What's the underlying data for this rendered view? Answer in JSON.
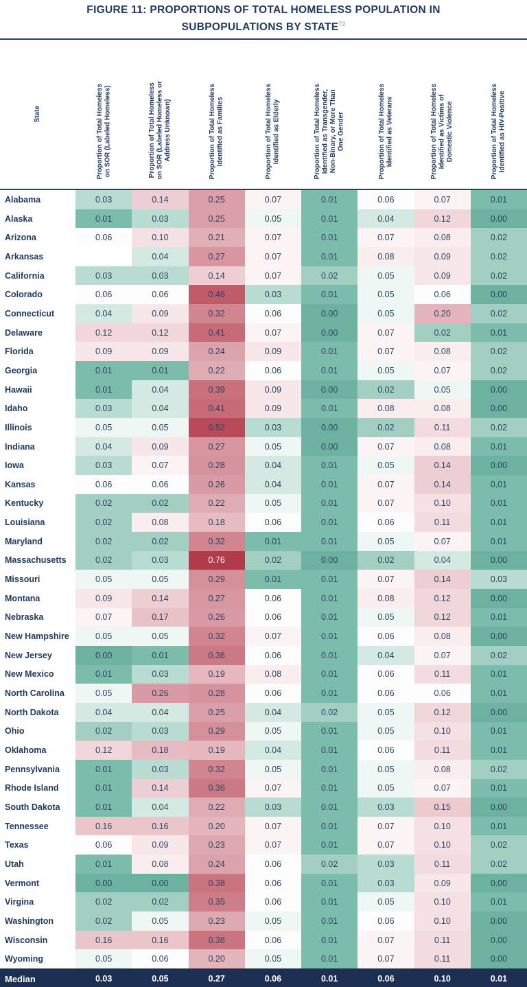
{
  "header": {
    "title_line1": "FIGURE 11: PROPORTIONS OF TOTAL HOMELESS POPULATION IN",
    "title_line2": "SUBPOPULATIONS BY STATE",
    "footnote": "72"
  },
  "colors": {
    "title_navy": "#203a60",
    "value_text": "#2c4364",
    "divider": "#2a3f63",
    "median_bg": "#1c2f52",
    "median_text": "#ffffff",
    "teal_low": "#6db2a0",
    "neutral_mid": "#fdfdfd",
    "red_high": "#b13b48"
  },
  "chart_data": {
    "type": "heatmap",
    "title": "FIGURE 11: PROPORTIONS OF TOTAL HOMELESS POPULATION IN SUBPOPULATIONS BY STATE",
    "title_footnote": "72",
    "row_header": "State",
    "columns": [
      "Proportion of Total Homeless\non SOR (Labeled Homeless)",
      "Proportion of Total Homeless\non SOR (Labeled Homeless or\nAddress Unknown)",
      "Proportion of Total Homeless\nIdentified as Families",
      "Proportion of Total Homeless\nIdentified as Elderly",
      "Proportion of Total Homeless\nIdentified as Transgender,\nNon-Binary, or More Than\nOne Gender",
      "Proportion of Total Homeless\nIdentified as Veterans",
      "Proportion of Total Homeless\nIdentified as Victims of\nDomestic Violence",
      "Proportion of Total Homeless\nIdentified as HIV-Positive"
    ],
    "rows": [
      {
        "state": "Alabama",
        "values": [
          0.03,
          0.14,
          0.25,
          0.07,
          0.01,
          0.06,
          0.07,
          0.01
        ]
      },
      {
        "state": "Alaska",
        "values": [
          0.01,
          0.03,
          0.25,
          0.05,
          0.01,
          0.04,
          0.12,
          0.0
        ]
      },
      {
        "state": "Arizona",
        "values": [
          0.06,
          0.1,
          0.21,
          0.07,
          0.01,
          0.07,
          0.08,
          0.02
        ]
      },
      {
        "state": "Arkansas",
        "values": [
          null,
          0.04,
          0.27,
          0.07,
          0.01,
          0.08,
          0.09,
          0.02
        ]
      },
      {
        "state": "California",
        "values": [
          0.03,
          0.03,
          0.14,
          0.07,
          0.02,
          0.05,
          0.09,
          0.02
        ]
      },
      {
        "state": "Colorado",
        "values": [
          0.06,
          0.06,
          0.46,
          0.03,
          0.01,
          0.05,
          0.06,
          0.0
        ]
      },
      {
        "state": "Connecticut",
        "values": [
          0.04,
          0.09,
          0.32,
          0.06,
          0.0,
          0.05,
          0.2,
          0.02
        ]
      },
      {
        "state": "Delaware",
        "values": [
          0.12,
          0.12,
          0.41,
          0.07,
          0.0,
          0.07,
          0.02,
          0.01
        ]
      },
      {
        "state": "Florida",
        "values": [
          0.09,
          0.09,
          0.24,
          0.09,
          0.01,
          0.07,
          0.08,
          0.02
        ]
      },
      {
        "state": "Georgia",
        "values": [
          0.01,
          0.01,
          0.22,
          0.06,
          0.01,
          0.05,
          0.07,
          0.02
        ]
      },
      {
        "state": "Hawaii",
        "values": [
          0.01,
          0.04,
          0.39,
          0.09,
          0.0,
          0.02,
          0.05,
          0.0
        ]
      },
      {
        "state": "Idaho",
        "values": [
          0.03,
          0.04,
          0.41,
          0.09,
          0.01,
          0.08,
          0.08,
          0.0
        ]
      },
      {
        "state": "Illinois",
        "values": [
          0.05,
          0.05,
          0.52,
          0.03,
          0.0,
          0.02,
          0.11,
          0.02
        ]
      },
      {
        "state": "Indiana",
        "values": [
          0.04,
          0.09,
          0.27,
          0.05,
          0.0,
          0.07,
          0.08,
          0.01
        ]
      },
      {
        "state": "Iowa",
        "values": [
          0.03,
          0.07,
          0.28,
          0.04,
          0.01,
          0.05,
          0.14,
          0.0
        ]
      },
      {
        "state": "Kansas",
        "values": [
          0.06,
          0.06,
          0.26,
          0.04,
          0.01,
          0.07,
          0.14,
          0.01
        ]
      },
      {
        "state": "Kentucky",
        "values": [
          0.02,
          0.02,
          0.22,
          0.05,
          0.01,
          0.07,
          0.1,
          0.01
        ]
      },
      {
        "state": "Louisiana",
        "values": [
          0.02,
          0.08,
          0.18,
          0.06,
          0.01,
          0.06,
          0.11,
          0.01
        ]
      },
      {
        "state": "Maryland",
        "values": [
          0.02,
          0.02,
          0.32,
          0.01,
          0.01,
          0.05,
          0.07,
          0.01
        ]
      },
      {
        "state": "Massachusetts",
        "values": [
          0.02,
          0.03,
          0.76,
          0.02,
          0.0,
          0.02,
          0.04,
          0.0
        ]
      },
      {
        "state": "Missouri",
        "values": [
          0.05,
          0.05,
          0.29,
          0.01,
          0.01,
          0.07,
          0.14,
          0.03
        ]
      },
      {
        "state": "Montana",
        "values": [
          0.09,
          0.14,
          0.27,
          0.06,
          0.01,
          0.08,
          0.12,
          0.0
        ]
      },
      {
        "state": "Nebraska",
        "values": [
          0.07,
          0.17,
          0.26,
          0.06,
          0.01,
          0.05,
          0.12,
          0.01
        ]
      },
      {
        "state": "New Hampshire",
        "values": [
          0.05,
          0.05,
          0.32,
          0.07,
          0.01,
          0.06,
          0.08,
          0.0
        ]
      },
      {
        "state": "New Jersey",
        "values": [
          0.0,
          0.01,
          0.36,
          0.06,
          0.01,
          0.04,
          0.07,
          0.02
        ]
      },
      {
        "state": "New Mexico",
        "values": [
          0.01,
          0.03,
          0.19,
          0.08,
          0.01,
          0.06,
          0.11,
          0.01
        ]
      },
      {
        "state": "North Carolina",
        "values": [
          0.05,
          0.26,
          0.28,
          0.06,
          0.01,
          0.06,
          0.06,
          0.01
        ]
      },
      {
        "state": "North Dakota",
        "values": [
          0.04,
          0.04,
          0.25,
          0.04,
          0.02,
          0.05,
          0.12,
          0.0
        ]
      },
      {
        "state": "Ohio",
        "values": [
          0.02,
          0.03,
          0.29,
          0.05,
          0.01,
          0.05,
          0.1,
          0.01
        ]
      },
      {
        "state": "Oklahoma",
        "values": [
          0.12,
          0.18,
          0.19,
          0.04,
          0.01,
          0.06,
          0.11,
          0.01
        ]
      },
      {
        "state": "Pennsylvania",
        "values": [
          0.01,
          0.03,
          0.32,
          0.05,
          0.01,
          0.05,
          0.08,
          0.02
        ]
      },
      {
        "state": "Rhode Island",
        "values": [
          0.01,
          0.14,
          0.36,
          0.07,
          0.01,
          0.05,
          0.07,
          0.01
        ]
      },
      {
        "state": "South Dakota",
        "values": [
          0.01,
          0.04,
          0.22,
          0.03,
          0.01,
          0.03,
          0.15,
          0.0
        ]
      },
      {
        "state": "Tennessee",
        "values": [
          0.16,
          0.16,
          0.2,
          0.07,
          0.01,
          0.07,
          0.1,
          0.01
        ]
      },
      {
        "state": "Texas",
        "values": [
          0.06,
          0.09,
          0.23,
          0.07,
          0.01,
          0.07,
          0.1,
          0.02
        ]
      },
      {
        "state": "Utah",
        "values": [
          0.01,
          0.08,
          0.24,
          0.06,
          0.02,
          0.03,
          0.11,
          0.02
        ]
      },
      {
        "state": "Vermont",
        "values": [
          0.0,
          0.0,
          0.38,
          0.06,
          0.01,
          0.03,
          0.09,
          0.0
        ]
      },
      {
        "state": "Virgina",
        "values": [
          0.02,
          0.02,
          0.35,
          0.06,
          0.01,
          0.05,
          0.1,
          0.01
        ]
      },
      {
        "state": "Washington",
        "values": [
          0.02,
          0.05,
          0.23,
          0.05,
          0.01,
          0.06,
          0.1,
          0.0
        ]
      },
      {
        "state": "Wisconsin",
        "values": [
          0.16,
          0.16,
          0.38,
          0.06,
          0.01,
          0.07,
          0.11,
          0.0
        ]
      },
      {
        "state": "Wyoming",
        "values": [
          0.05,
          0.06,
          0.2,
          0.05,
          0.01,
          0.07,
          0.11,
          0.0
        ]
      }
    ],
    "median": {
      "label": "Median",
      "values": [
        0.03,
        0.05,
        0.27,
        0.06,
        0.01,
        0.06,
        0.1,
        0.01
      ]
    },
    "color_scale": {
      "description": "diverging teal-white-red, teal = low proportion, red = high proportion",
      "stops": [
        [
          0.0,
          "#6db2a0"
        ],
        [
          0.01,
          "#7cbcaa"
        ],
        [
          0.02,
          "#a3cfc3"
        ],
        [
          0.03,
          "#b9dcd2"
        ],
        [
          0.04,
          "#d3e9e2"
        ],
        [
          0.05,
          "#eff7f4"
        ],
        [
          0.06,
          "#fdfdfd"
        ],
        [
          0.07,
          "#fcf4f4"
        ],
        [
          0.08,
          "#f9edee"
        ],
        [
          0.09,
          "#f7e7e9"
        ],
        [
          0.1,
          "#f5e1e4"
        ],
        [
          0.12,
          "#f1d7da"
        ],
        [
          0.14,
          "#edced2"
        ],
        [
          0.16,
          "#eac5ca"
        ],
        [
          0.18,
          "#e6bcc2"
        ],
        [
          0.2,
          "#e3b4bb"
        ],
        [
          0.23,
          "#dda8b0"
        ],
        [
          0.26,
          "#d89aa4"
        ],
        [
          0.29,
          "#d48f99"
        ],
        [
          0.32,
          "#d0858f"
        ],
        [
          0.36,
          "#cb7a85"
        ],
        [
          0.41,
          "#c66b77"
        ],
        [
          0.46,
          "#c05c6a"
        ],
        [
          0.52,
          "#ba4a5a"
        ],
        [
          0.76,
          "#b13b48"
        ]
      ]
    }
  }
}
